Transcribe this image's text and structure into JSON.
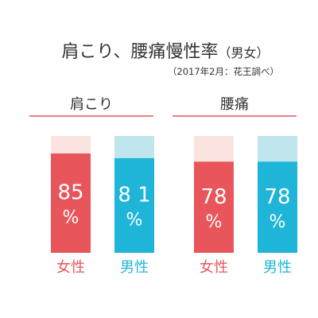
{
  "chart_data": {
    "type": "bar",
    "title": "肩こり、腰痛慢性率",
    "title_suffix": "（男女）",
    "subtitle": "（2017年2月：花王調べ）",
    "percent_label": "%",
    "ylim": [
      0,
      100
    ],
    "groups": [
      {
        "label": "肩こり",
        "bars": [
          {
            "category": "女性",
            "value": 85,
            "value_label": "85"
          },
          {
            "category": "男性",
            "value": 81,
            "value_label": "8 1"
          }
        ]
      },
      {
        "label": "腰痛",
        "bars": [
          {
            "category": "女性",
            "value": 78,
            "value_label": "78"
          },
          {
            "category": "男性",
            "value": 78,
            "value_label": "78"
          }
        ]
      }
    ]
  },
  "colors": {
    "female": "#e8555a",
    "female_track": "#fbe3df",
    "male": "#1fb5d8",
    "male_track": "#bfe6ec",
    "group_rule": "#e8555a",
    "text": "#333333"
  }
}
